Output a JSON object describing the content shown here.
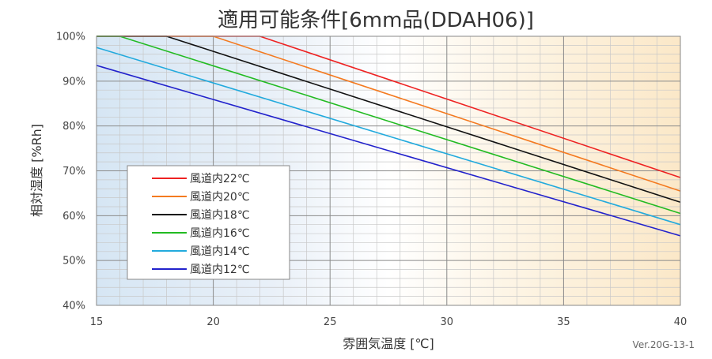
{
  "chart_data": {
    "type": "line",
    "title": "適用可能条件[6mm品(DDAH06)]",
    "xlabel": "雰囲気温度 [℃]",
    "ylabel": "相対湿度 [%Rh]",
    "xlim": [
      15,
      40
    ],
    "ylim": [
      40,
      100
    ],
    "x_ticks": [
      "15",
      "20",
      "25",
      "30",
      "35",
      "40"
    ],
    "y_ticks": [
      "40%",
      "50%",
      "60%",
      "70%",
      "80%",
      "90%",
      "100%"
    ],
    "grid": true,
    "legend_position": "bottom-left",
    "version_label": "Ver.20G-13-1",
    "series": [
      {
        "name": "風道内22℃",
        "color": "#ee2222",
        "x": [
          15,
          22,
          40
        ],
        "y": [
          100,
          100,
          68.5
        ]
      },
      {
        "name": "風道内20℃",
        "color": "#f47a20",
        "x": [
          15,
          20,
          40
        ],
        "y": [
          100,
          100,
          65.5
        ]
      },
      {
        "name": "風道内18℃",
        "color": "#111111",
        "x": [
          15,
          18,
          40
        ],
        "y": [
          100,
          100,
          63
        ]
      },
      {
        "name": "風道内16℃",
        "color": "#22bb22",
        "x": [
          15,
          16,
          40
        ],
        "y": [
          100,
          100,
          60.5
        ]
      },
      {
        "name": "風道内14℃",
        "color": "#22aadd",
        "x": [
          15,
          40
        ],
        "y": [
          97.5,
          58
        ]
      },
      {
        "name": "風道内12℃",
        "color": "#2222cc",
        "x": [
          15,
          40
        ],
        "y": [
          93.5,
          55.5
        ]
      }
    ]
  }
}
